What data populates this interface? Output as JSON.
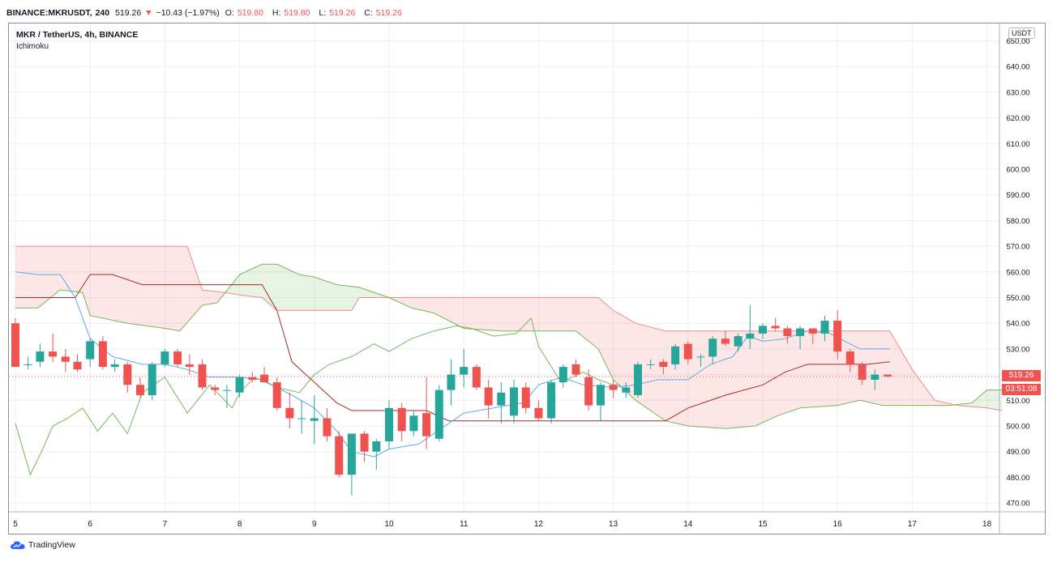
{
  "header": {
    "symbol": "BINANCE:MKRUSDT,",
    "interval": "240",
    "last": "519.26",
    "change_arrow": "▼",
    "change": "−10.43 (−1.97%)",
    "o_label": "O:",
    "o": "519.80",
    "h_label": "H:",
    "h": "519.80",
    "l_label": "L:",
    "l": "519.26",
    "c_label": "C:",
    "c": "519.26"
  },
  "legend": {
    "title": "MKR / TetherUS, 4h, BINANCE",
    "indicator": "Ichimoku"
  },
  "axis_unit": "USDT",
  "price_tag": "519.26",
  "timer_tag": "03:51:08",
  "brand": "TradingView",
  "colors": {
    "up": "#26a69a",
    "down": "#ef5350",
    "tenkan": "#5fa8e8",
    "kijun": "#a52a2a",
    "spanA": "#79b55a",
    "spanB": "#ef5350"
  },
  "chart_data": {
    "type": "candlestick",
    "title": "MKR / TetherUS, 4h, BINANCE",
    "x_ticks": [
      "5",
      "6",
      "7",
      "8",
      "9",
      "10",
      "11",
      "12",
      "13",
      "14",
      "15",
      "16",
      "17",
      "18"
    ],
    "y_ticks": [
      "470.00",
      "480.00",
      "490.00",
      "500.00",
      "510.00",
      "520.00",
      "530.00",
      "540.00",
      "550.00",
      "560.00",
      "570.00",
      "580.00",
      "590.00",
      "600.00",
      "610.00",
      "620.00",
      "630.00",
      "640.00",
      "650.00"
    ],
    "ylim": [
      465,
      652
    ],
    "xlim": [
      5,
      18.2
    ],
    "grid": true,
    "candles": [
      {
        "x": 5.0,
        "o": 540,
        "h": 542,
        "l": 523,
        "c": 523
      },
      {
        "x": 5.17,
        "o": 524,
        "h": 527,
        "l": 522,
        "c": 524
      },
      {
        "x": 5.33,
        "o": 525,
        "h": 532,
        "l": 523,
        "c": 529
      },
      {
        "x": 5.5,
        "o": 529,
        "h": 536,
        "l": 525,
        "c": 527
      },
      {
        "x": 5.67,
        "o": 527,
        "h": 530,
        "l": 521,
        "c": 525
      },
      {
        "x": 5.83,
        "o": 525,
        "h": 528,
        "l": 521,
        "c": 522
      },
      {
        "x": 6.0,
        "o": 526,
        "h": 534,
        "l": 523,
        "c": 533
      },
      {
        "x": 6.17,
        "o": 533,
        "h": 535,
        "l": 522,
        "c": 523
      },
      {
        "x": 6.33,
        "o": 523,
        "h": 526,
        "l": 521,
        "c": 524
      },
      {
        "x": 6.5,
        "o": 524,
        "h": 525,
        "l": 513,
        "c": 516
      },
      {
        "x": 6.67,
        "o": 516,
        "h": 519,
        "l": 511,
        "c": 512
      },
      {
        "x": 6.83,
        "o": 512,
        "h": 525,
        "l": 510,
        "c": 524
      },
      {
        "x": 7.0,
        "o": 524,
        "h": 530,
        "l": 523,
        "c": 529
      },
      {
        "x": 7.17,
        "o": 529,
        "h": 530,
        "l": 523,
        "c": 524
      },
      {
        "x": 7.33,
        "o": 524,
        "h": 528,
        "l": 520,
        "c": 523
      },
      {
        "x": 7.5,
        "o": 524,
        "h": 526,
        "l": 514,
        "c": 515
      },
      {
        "x": 7.67,
        "o": 515,
        "h": 516,
        "l": 512,
        "c": 514
      },
      {
        "x": 7.83,
        "o": 514,
        "h": 516,
        "l": 507,
        "c": 514
      },
      {
        "x": 8.0,
        "o": 513,
        "h": 520,
        "l": 511,
        "c": 519
      },
      {
        "x": 8.17,
        "o": 519,
        "h": 521,
        "l": 517,
        "c": 518
      },
      {
        "x": 8.33,
        "o": 520,
        "h": 523,
        "l": 517,
        "c": 517
      },
      {
        "x": 8.5,
        "o": 517,
        "h": 519,
        "l": 506,
        "c": 507
      },
      {
        "x": 8.67,
        "o": 507,
        "h": 513,
        "l": 499,
        "c": 503
      },
      {
        "x": 8.83,
        "o": 503,
        "h": 510,
        "l": 497,
        "c": 503
      },
      {
        "x": 9.0,
        "o": 502,
        "h": 512,
        "l": 493,
        "c": 503
      },
      {
        "x": 9.17,
        "o": 503,
        "h": 507,
        "l": 494,
        "c": 496
      },
      {
        "x": 9.33,
        "o": 496,
        "h": 498,
        "l": 480,
        "c": 481
      },
      {
        "x": 9.5,
        "o": 481,
        "h": 497,
        "l": 473,
        "c": 497
      },
      {
        "x": 9.67,
        "o": 497,
        "h": 498,
        "l": 486,
        "c": 490
      },
      {
        "x": 9.83,
        "o": 490,
        "h": 495,
        "l": 483,
        "c": 494
      },
      {
        "x": 10.0,
        "o": 494,
        "h": 510,
        "l": 491,
        "c": 507
      },
      {
        "x": 10.17,
        "o": 507,
        "h": 509,
        "l": 494,
        "c": 498
      },
      {
        "x": 10.33,
        "o": 498,
        "h": 506,
        "l": 496,
        "c": 504
      },
      {
        "x": 10.5,
        "o": 505,
        "h": 519,
        "l": 491,
        "c": 496
      },
      {
        "x": 10.67,
        "o": 495,
        "h": 516,
        "l": 494,
        "c": 514
      },
      {
        "x": 10.83,
        "o": 514,
        "h": 526,
        "l": 508,
        "c": 520
      },
      {
        "x": 11.0,
        "o": 520,
        "h": 530,
        "l": 515,
        "c": 523
      },
      {
        "x": 11.17,
        "o": 523,
        "h": 524,
        "l": 514,
        "c": 515
      },
      {
        "x": 11.33,
        "o": 515,
        "h": 518,
        "l": 503,
        "c": 508
      },
      {
        "x": 11.5,
        "o": 508,
        "h": 517,
        "l": 501,
        "c": 513
      },
      {
        "x": 11.67,
        "o": 504,
        "h": 518,
        "l": 501,
        "c": 515
      },
      {
        "x": 11.83,
        "o": 515,
        "h": 517,
        "l": 505,
        "c": 507
      },
      {
        "x": 12.0,
        "o": 507,
        "h": 510,
        "l": 502,
        "c": 503
      },
      {
        "x": 12.17,
        "o": 503,
        "h": 518,
        "l": 501,
        "c": 517
      },
      {
        "x": 12.33,
        "o": 517,
        "h": 524,
        "l": 515,
        "c": 523
      },
      {
        "x": 12.5,
        "o": 524,
        "h": 526,
        "l": 519,
        "c": 520
      },
      {
        "x": 12.67,
        "o": 519,
        "h": 522,
        "l": 506,
        "c": 508
      },
      {
        "x": 12.83,
        "o": 508,
        "h": 517,
        "l": 502,
        "c": 516
      },
      {
        "x": 13.0,
        "o": 516,
        "h": 518,
        "l": 511,
        "c": 514
      },
      {
        "x": 13.17,
        "o": 513,
        "h": 517,
        "l": 511,
        "c": 515
      },
      {
        "x": 13.33,
        "o": 512,
        "h": 525,
        "l": 511,
        "c": 524
      },
      {
        "x": 13.5,
        "o": 524,
        "h": 526,
        "l": 522,
        "c": 524
      },
      {
        "x": 13.67,
        "o": 525,
        "h": 526,
        "l": 520,
        "c": 523
      },
      {
        "x": 13.83,
        "o": 524,
        "h": 532,
        "l": 522,
        "c": 531
      },
      {
        "x": 14.0,
        "o": 532,
        "h": 533,
        "l": 524,
        "c": 526
      },
      {
        "x": 14.17,
        "o": 527,
        "h": 528,
        "l": 523,
        "c": 527
      },
      {
        "x": 14.33,
        "o": 527,
        "h": 535,
        "l": 524,
        "c": 534
      },
      {
        "x": 14.5,
        "o": 534,
        "h": 537,
        "l": 531,
        "c": 532
      },
      {
        "x": 14.67,
        "o": 531,
        "h": 536,
        "l": 529,
        "c": 535
      },
      {
        "x": 14.83,
        "o": 534,
        "h": 547,
        "l": 530,
        "c": 536
      },
      {
        "x": 15.0,
        "o": 536,
        "h": 540,
        "l": 534,
        "c": 539
      },
      {
        "x": 15.17,
        "o": 539,
        "h": 542,
        "l": 537,
        "c": 538
      },
      {
        "x": 15.33,
        "o": 538,
        "h": 539,
        "l": 532,
        "c": 535
      },
      {
        "x": 15.5,
        "o": 535,
        "h": 539,
        "l": 530,
        "c": 538
      },
      {
        "x": 15.67,
        "o": 538,
        "h": 538,
        "l": 532,
        "c": 536
      },
      {
        "x": 15.83,
        "o": 536,
        "h": 543,
        "l": 533,
        "c": 541
      },
      {
        "x": 16.0,
        "o": 541,
        "h": 545,
        "l": 526,
        "c": 529
      },
      {
        "x": 16.17,
        "o": 529,
        "h": 530,
        "l": 521,
        "c": 524
      },
      {
        "x": 16.33,
        "o": 524,
        "h": 525,
        "l": 516,
        "c": 518
      },
      {
        "x": 16.5,
        "o": 518,
        "h": 522,
        "l": 514,
        "c": 520
      },
      {
        "x": 16.67,
        "o": 520,
        "h": 520,
        "l": 519,
        "c": 519.26
      }
    ],
    "tenkan": [
      [
        5.0,
        560
      ],
      [
        5.3,
        559
      ],
      [
        5.6,
        559
      ],
      [
        5.8,
        550
      ],
      [
        6.0,
        534
      ],
      [
        6.3,
        527
      ],
      [
        6.7,
        524
      ],
      [
        7.0,
        524
      ],
      [
        7.3,
        522
      ],
      [
        7.6,
        519
      ],
      [
        8.0,
        519
      ],
      [
        8.3,
        518
      ],
      [
        8.7,
        512
      ],
      [
        9.0,
        507
      ],
      [
        9.3,
        498
      ],
      [
        9.5,
        490
      ],
      [
        9.8,
        488
      ],
      [
        10.0,
        491
      ],
      [
        10.4,
        493
      ],
      [
        10.7,
        499
      ],
      [
        11.0,
        505
      ],
      [
        11.4,
        507
      ],
      [
        11.8,
        509
      ],
      [
        12.0,
        516
      ],
      [
        12.3,
        519
      ],
      [
        12.6,
        516
      ],
      [
        13.0,
        515
      ],
      [
        13.3,
        516
      ],
      [
        13.6,
        518
      ],
      [
        14.0,
        518
      ],
      [
        14.3,
        524
      ],
      [
        14.6,
        527
      ],
      [
        14.8,
        535
      ],
      [
        15.0,
        533
      ],
      [
        15.3,
        534
      ],
      [
        15.6,
        537
      ],
      [
        15.9,
        536
      ],
      [
        16.1,
        533
      ],
      [
        16.3,
        530
      ],
      [
        16.7,
        530
      ]
    ],
    "kijun": [
      [
        5.0,
        550
      ],
      [
        5.8,
        550
      ],
      [
        6.0,
        559
      ],
      [
        6.3,
        559
      ],
      [
        6.7,
        555
      ],
      [
        7.5,
        555
      ],
      [
        8.0,
        555
      ],
      [
        8.3,
        555
      ],
      [
        8.5,
        545
      ],
      [
        8.7,
        525
      ],
      [
        9.0,
        517
      ],
      [
        9.3,
        509
      ],
      [
        9.5,
        506
      ],
      [
        10.0,
        506
      ],
      [
        10.5,
        506
      ],
      [
        10.8,
        502
      ],
      [
        11.0,
        502
      ],
      [
        12.0,
        502
      ],
      [
        13.0,
        502
      ],
      [
        13.7,
        502
      ],
      [
        14.0,
        507
      ],
      [
        14.5,
        512
      ],
      [
        15.0,
        516
      ],
      [
        15.3,
        521
      ],
      [
        15.6,
        524
      ],
      [
        16.0,
        524
      ],
      [
        16.4,
        524
      ],
      [
        16.7,
        525
      ]
    ],
    "spanA": [
      [
        5.0,
        546
      ],
      [
        5.3,
        546
      ],
      [
        5.6,
        553
      ],
      [
        5.9,
        552
      ],
      [
        6.0,
        543
      ],
      [
        6.5,
        540
      ],
      [
        7.0,
        538
      ],
      [
        7.2,
        537
      ],
      [
        7.5,
        547
      ],
      [
        7.7,
        548
      ],
      [
        8.0,
        559
      ],
      [
        8.3,
        563
      ],
      [
        8.5,
        563
      ],
      [
        8.8,
        559
      ],
      [
        9.0,
        558
      ],
      [
        9.3,
        555
      ],
      [
        9.6,
        554
      ],
      [
        10.0,
        550
      ],
      [
        10.3,
        546
      ],
      [
        10.6,
        544
      ],
      [
        11.0,
        538
      ],
      [
        11.5,
        537
      ],
      [
        12.0,
        537
      ],
      [
        12.5,
        537
      ],
      [
        12.8,
        530
      ],
      [
        13.0,
        518
      ],
      [
        13.3,
        510
      ],
      [
        13.7,
        502
      ],
      [
        14.0,
        500
      ],
      [
        14.5,
        499
      ],
      [
        14.9,
        500
      ],
      [
        15.2,
        504
      ],
      [
        15.5,
        507
      ],
      [
        16.0,
        508
      ],
      [
        16.3,
        510
      ],
      [
        16.6,
        508
      ],
      [
        17.0,
        508
      ],
      [
        17.5,
        508
      ],
      [
        17.8,
        509
      ],
      [
        18.0,
        514
      ],
      [
        18.2,
        514
      ]
    ],
    "spanB": [
      [
        5.0,
        570
      ],
      [
        5.5,
        570
      ],
      [
        6.0,
        570
      ],
      [
        6.5,
        570
      ],
      [
        7.0,
        570
      ],
      [
        7.3,
        570
      ],
      [
        7.5,
        553
      ],
      [
        7.8,
        552
      ],
      [
        8.0,
        551
      ],
      [
        8.3,
        550
      ],
      [
        8.5,
        545
      ],
      [
        9.0,
        545
      ],
      [
        9.5,
        545
      ],
      [
        9.6,
        550
      ],
      [
        10.0,
        550
      ],
      [
        10.5,
        550
      ],
      [
        11.0,
        550
      ],
      [
        11.5,
        550
      ],
      [
        12.0,
        550
      ],
      [
        12.5,
        550
      ],
      [
        12.8,
        550
      ],
      [
        13.0,
        545
      ],
      [
        13.3,
        540
      ],
      [
        13.7,
        537
      ],
      [
        14.0,
        537
      ],
      [
        14.5,
        537
      ],
      [
        15.0,
        537
      ],
      [
        15.5,
        537
      ],
      [
        16.0,
        537
      ],
      [
        16.4,
        537
      ],
      [
        16.7,
        537
      ],
      [
        17.0,
        522
      ],
      [
        17.3,
        510
      ],
      [
        17.6,
        508
      ],
      [
        18.0,
        507
      ],
      [
        18.2,
        506
      ]
    ],
    "chikou": [
      [
        5.0,
        501
      ],
      [
        5.2,
        481
      ],
      [
        5.35,
        490
      ],
      [
        5.5,
        500
      ],
      [
        5.7,
        503
      ],
      [
        5.9,
        507
      ],
      [
        6.1,
        498
      ],
      [
        6.3,
        505
      ],
      [
        6.5,
        497
      ],
      [
        6.7,
        513
      ],
      [
        7.0,
        519
      ],
      [
        7.3,
        505
      ],
      [
        7.6,
        516
      ],
      [
        7.9,
        507
      ],
      [
        8.0,
        513
      ],
      [
        8.2,
        519
      ],
      [
        8.5,
        515
      ],
      [
        8.8,
        513
      ],
      [
        9.0,
        520
      ],
      [
        9.2,
        524
      ],
      [
        9.5,
        527
      ],
      [
        9.8,
        532
      ],
      [
        10.0,
        529
      ],
      [
        10.3,
        534
      ],
      [
        10.6,
        537
      ],
      [
        10.9,
        539
      ],
      [
        11.1,
        538
      ],
      [
        11.4,
        535
      ],
      [
        11.7,
        536
      ],
      [
        11.9,
        542
      ],
      [
        12.0,
        531
      ],
      [
        12.3,
        517
      ],
      [
        12.6,
        521
      ],
      [
        12.8,
        518
      ],
      [
        13.0,
        516
      ],
      [
        13.1,
        516
      ]
    ]
  }
}
